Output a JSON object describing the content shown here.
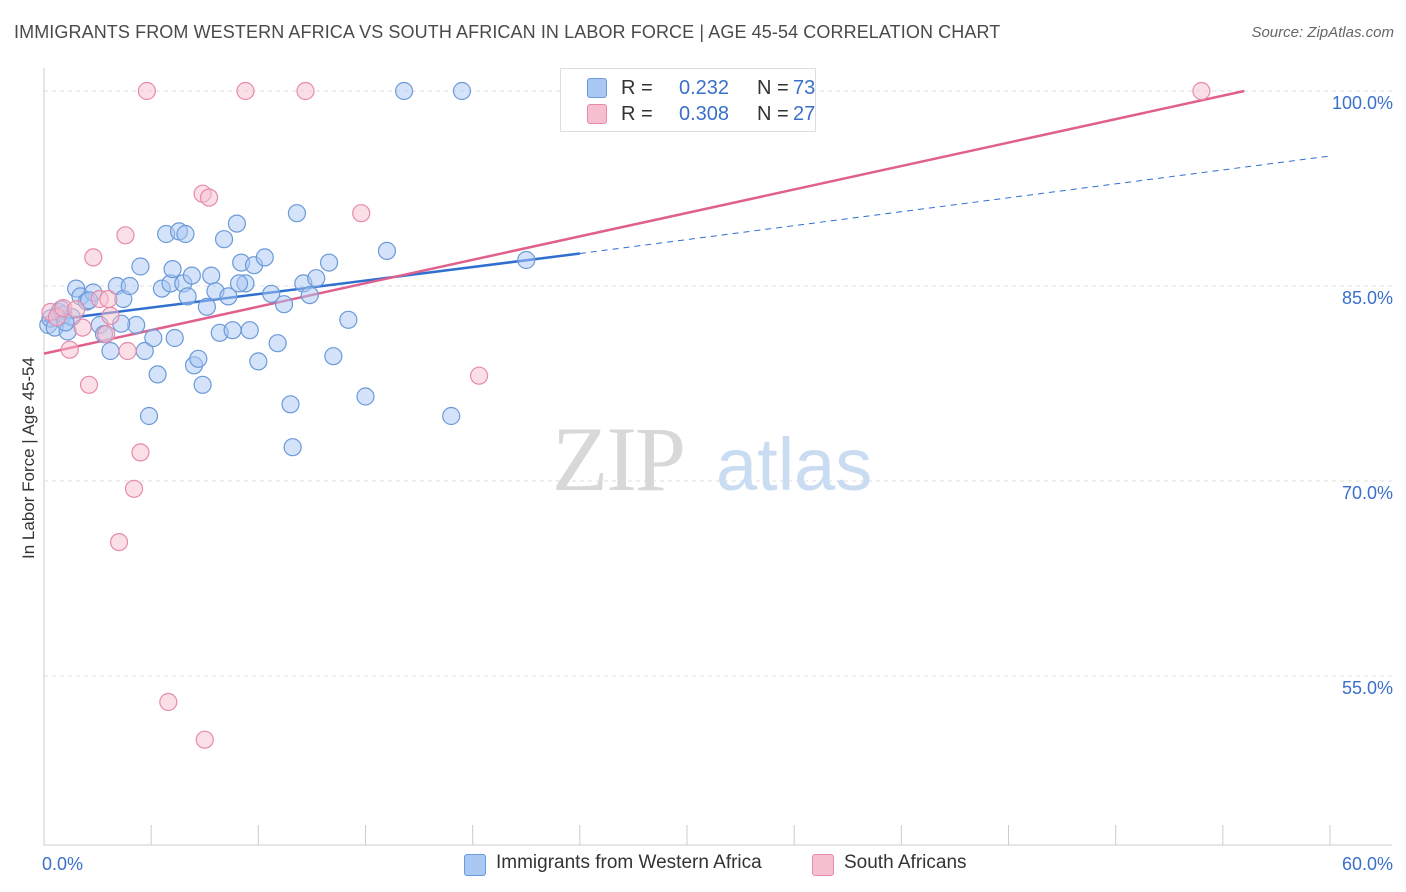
{
  "title": "IMMIGRANTS FROM WESTERN AFRICA VS SOUTH AFRICAN IN LABOR FORCE | AGE 45-54 CORRELATION CHART",
  "source": "Source: ZipAtlas.com",
  "watermark": {
    "zip": "ZIP",
    "atlas": "atlas"
  },
  "legend_top": {
    "rows": [
      {
        "r_label": "R =",
        "r_value": "0.232",
        "n_label": "N =",
        "n_value": "73"
      },
      {
        "r_label": "R =",
        "r_value": "0.308",
        "n_label": "N =",
        "n_value": "27"
      }
    ]
  },
  "legend_bottom": {
    "items": [
      {
        "label": "Immigrants from Western Africa"
      },
      {
        "label": "South Africans"
      }
    ]
  },
  "colors": {
    "blue_fill": "#a9c8f3",
    "blue_stroke": "#6b9ad8",
    "blue_line": "#2f6fcf",
    "pink_fill": "#f6bfd0",
    "pink_stroke": "#e88aaa",
    "pink_line": "#e0608d",
    "axis_label": "#3a70c9",
    "grid": "#dddddd"
  },
  "chart_data": {
    "type": "scatter",
    "title": "IMMIGRANTS FROM WESTERN AFRICA VS SOUTH AFRICAN IN LABOR FORCE | AGE 45-54 CORRELATION CHART",
    "xlabel": "",
    "ylabel": "In Labor Force | Age 45-54",
    "xlim": [
      0,
      60
    ],
    "ylim": [
      42,
      101
    ],
    "x_tick_labels": [
      {
        "value": 0,
        "label": "0.0%"
      },
      {
        "value": 60,
        "label": "60.0%"
      }
    ],
    "y_tick_labels": [
      {
        "value": 100,
        "label": "100.0%"
      },
      {
        "value": 85,
        "label": "85.0%"
      },
      {
        "value": 70,
        "label": "70.0%"
      },
      {
        "value": 55,
        "label": "55.0%"
      }
    ],
    "grid": true,
    "legend_position": "top-center",
    "series": [
      {
        "name": "Immigrants from Western Africa",
        "color": "#a9c8f3",
        "points": [
          [
            0.2,
            82.0
          ],
          [
            0.3,
            82.5
          ],
          [
            0.5,
            81.8
          ],
          [
            0.7,
            83.0
          ],
          [
            0.9,
            82.8
          ],
          [
            1.1,
            81.5
          ],
          [
            1.3,
            82.6
          ],
          [
            1.5,
            84.8
          ],
          [
            1.7,
            84.2
          ],
          [
            2.0,
            83.8
          ],
          [
            2.3,
            84.5
          ],
          [
            2.6,
            82.0
          ],
          [
            2.8,
            81.3
          ],
          [
            3.1,
            80.0
          ],
          [
            3.4,
            85.0
          ],
          [
            3.7,
            84.0
          ],
          [
            4.0,
            85.0
          ],
          [
            4.3,
            82.0
          ],
          [
            4.5,
            86.5
          ],
          [
            4.7,
            80.0
          ],
          [
            4.9,
            75.0
          ],
          [
            5.1,
            81.0
          ],
          [
            5.3,
            78.2
          ],
          [
            5.5,
            84.8
          ],
          [
            5.7,
            89.0
          ],
          [
            5.9,
            85.2
          ],
          [
            6.0,
            86.3
          ],
          [
            6.1,
            81.0
          ],
          [
            6.3,
            89.2
          ],
          [
            6.5,
            85.2
          ],
          [
            6.7,
            84.2
          ],
          [
            6.9,
            85.8
          ],
          [
            7.0,
            78.9
          ],
          [
            7.2,
            79.4
          ],
          [
            7.4,
            77.4
          ],
          [
            7.6,
            83.4
          ],
          [
            7.8,
            85.8
          ],
          [
            8.0,
            84.6
          ],
          [
            8.2,
            81.4
          ],
          [
            8.4,
            88.6
          ],
          [
            8.6,
            84.2
          ],
          [
            8.8,
            81.6
          ],
          [
            9.0,
            89.8
          ],
          [
            9.2,
            86.8
          ],
          [
            9.4,
            85.2
          ],
          [
            9.6,
            81.6
          ],
          [
            9.8,
            86.6
          ],
          [
            10.0,
            79.2
          ],
          [
            10.3,
            87.2
          ],
          [
            10.6,
            84.4
          ],
          [
            10.9,
            80.6
          ],
          [
            11.2,
            83.6
          ],
          [
            11.5,
            75.9
          ],
          [
            11.6,
            72.6
          ],
          [
            11.8,
            90.6
          ],
          [
            12.1,
            85.2
          ],
          [
            12.4,
            84.3
          ],
          [
            12.7,
            85.6
          ],
          [
            13.3,
            86.8
          ],
          [
            13.5,
            79.6
          ],
          [
            14.2,
            82.4
          ],
          [
            15.0,
            76.5
          ],
          [
            16.0,
            87.7
          ],
          [
            16.8,
            100.0
          ],
          [
            19.0,
            75.0
          ],
          [
            19.5,
            100.0
          ],
          [
            22.5,
            87.0
          ],
          [
            0.8,
            83.2
          ],
          [
            1.0,
            82.2
          ],
          [
            2.1,
            83.9
          ],
          [
            3.6,
            82.1
          ],
          [
            9.1,
            85.2
          ],
          [
            6.6,
            89.0
          ]
        ]
      },
      {
        "name": "South Africans",
        "color": "#f6bfd0",
        "points": [
          [
            0.3,
            83.0
          ],
          [
            0.6,
            82.6
          ],
          [
            0.9,
            83.3
          ],
          [
            1.2,
            80.1
          ],
          [
            1.5,
            83.2
          ],
          [
            1.8,
            81.8
          ],
          [
            2.1,
            77.4
          ],
          [
            2.3,
            87.2
          ],
          [
            2.6,
            84.0
          ],
          [
            2.9,
            81.3
          ],
          [
            3.1,
            82.7
          ],
          [
            3.5,
            65.3
          ],
          [
            3.8,
            88.9
          ],
          [
            3.9,
            80.0
          ],
          [
            4.2,
            69.4
          ],
          [
            4.5,
            72.2
          ],
          [
            4.8,
            100.0
          ],
          [
            5.8,
            53.0
          ],
          [
            7.4,
            92.1
          ],
          [
            7.5,
            50.1
          ],
          [
            7.7,
            91.8
          ],
          [
            9.4,
            100.0
          ],
          [
            12.2,
            100.0
          ],
          [
            14.8,
            90.6
          ],
          [
            20.3,
            78.1
          ],
          [
            54.0,
            100.0
          ],
          [
            3.0,
            84.0
          ]
        ]
      }
    ],
    "trendlines": [
      {
        "series": "Immigrants from Western Africa",
        "x": [
          0,
          25
        ],
        "y": [
          82.3,
          87.5
        ],
        "dashed_to": [
          60,
          95.0
        ]
      },
      {
        "series": "South Africans",
        "x": [
          0,
          56
        ],
        "y": [
          79.8,
          100.0
        ]
      }
    ]
  }
}
